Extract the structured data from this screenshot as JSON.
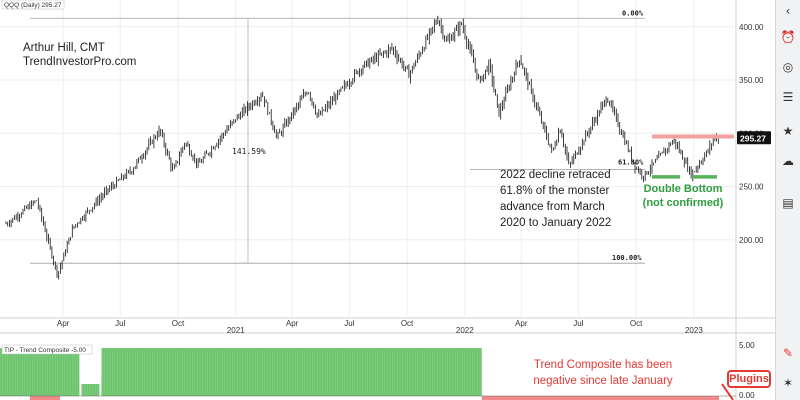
{
  "chart_data": {
    "type": "line",
    "symbol_label": "QQQ (Daily) 295.27",
    "author": [
      "Arthur Hill, CMT",
      "TrendInvestorPro.com"
    ],
    "x_ticks": [
      "Apr",
      "Jul",
      "Oct",
      "2021",
      "Apr",
      "Jul",
      "Oct",
      "2022",
      "Apr",
      "Jul",
      "Oct",
      "2023"
    ],
    "y_ticks": [
      "400.00",
      "350.00",
      "300.00",
      "250.00",
      "200.00"
    ],
    "ylim": [
      150,
      412
    ],
    "grid": true,
    "last_price": "295.27",
    "price_path": [
      {
        "x": "2020-01-02",
        "y": 215
      },
      {
        "x": "2020-02-19",
        "y": 237
      },
      {
        "x": "2020-03-23",
        "y": 167
      },
      {
        "x": "2020-04-17",
        "y": 212
      },
      {
        "x": "2020-06-08",
        "y": 245
      },
      {
        "x": "2020-07-20",
        "y": 266
      },
      {
        "x": "2020-09-02",
        "y": 303
      },
      {
        "x": "2020-09-23",
        "y": 264
      },
      {
        "x": "2020-10-12",
        "y": 292
      },
      {
        "x": "2020-11-02",
        "y": 270
      },
      {
        "x": "2020-12-31",
        "y": 313
      },
      {
        "x": "2021-02-12",
        "y": 337
      },
      {
        "x": "2021-03-08",
        "y": 296
      },
      {
        "x": "2021-04-26",
        "y": 341
      },
      {
        "x": "2021-05-12",
        "y": 315
      },
      {
        "x": "2021-07-20",
        "y": 362
      },
      {
        "x": "2021-09-07",
        "y": 380
      },
      {
        "x": "2021-10-04",
        "y": 355
      },
      {
        "x": "2021-11-19",
        "y": 408
      },
      {
        "x": "2021-12-03",
        "y": 385
      },
      {
        "x": "2021-12-27",
        "y": 403
      },
      {
        "x": "2022-01-24",
        "y": 348
      },
      {
        "x": "2022-02-09",
        "y": 365
      },
      {
        "x": "2022-02-24",
        "y": 318
      },
      {
        "x": "2022-03-29",
        "y": 371
      },
      {
        "x": "2022-05-20",
        "y": 282
      },
      {
        "x": "2022-06-02",
        "y": 305
      },
      {
        "x": "2022-06-16",
        "y": 269
      },
      {
        "x": "2022-08-16",
        "y": 334
      },
      {
        "x": "2022-09-30",
        "y": 268
      },
      {
        "x": "2022-10-13",
        "y": 260
      },
      {
        "x": "2022-11-30",
        "y": 294
      },
      {
        "x": "2022-12-28",
        "y": 261
      },
      {
        "x": "2023-01-25",
        "y": 285
      },
      {
        "x": "2023-02-02",
        "y": 296
      }
    ],
    "annotations": {
      "fib_0": "0.00%",
      "fib_618": "61.80%",
      "fib_100": "100.00%",
      "advance_pct": "141.59%",
      "decline_note": [
        "2022 decline retraced",
        "61.8% of the monster",
        "advance from March",
        "2020 to January 2022"
      ],
      "double_bottom": [
        "Double Bottom",
        "(not confirmed)"
      ]
    },
    "levels": {
      "fib_0": 408,
      "fib_618": 266,
      "fib_100": 178,
      "resistance": 297,
      "support": 259
    },
    "indicator": {
      "label": "TIP - Trend Composite -5.00",
      "y_ticks": [
        "5.00",
        "0.00"
      ],
      "value": -5,
      "positive_value": 5,
      "bull_start": "2020-04-20",
      "gap_start": "2020-04-27",
      "gap_end": "2020-06-01",
      "bear_start": "2022-01-28",
      "note": [
        "Trend Composite has been",
        "negative since late January"
      ]
    },
    "colors": {
      "bullish": "#6cc46c",
      "bearish": "#f28a8a",
      "resistance": "#f3a0a0",
      "support": "#59b35b",
      "note_red": "#e53935",
      "note_green": "#2e9e3e"
    }
  },
  "ui": {
    "plugins_label": "Plugins",
    "sidebar_icons": [
      "chevron-left-icon",
      "alarm-clock-icon",
      "globe-icon",
      "layers-icon",
      "trophy-icon",
      "cloud-icon",
      "document-icon",
      "pen-icon",
      "broom-icon"
    ]
  }
}
